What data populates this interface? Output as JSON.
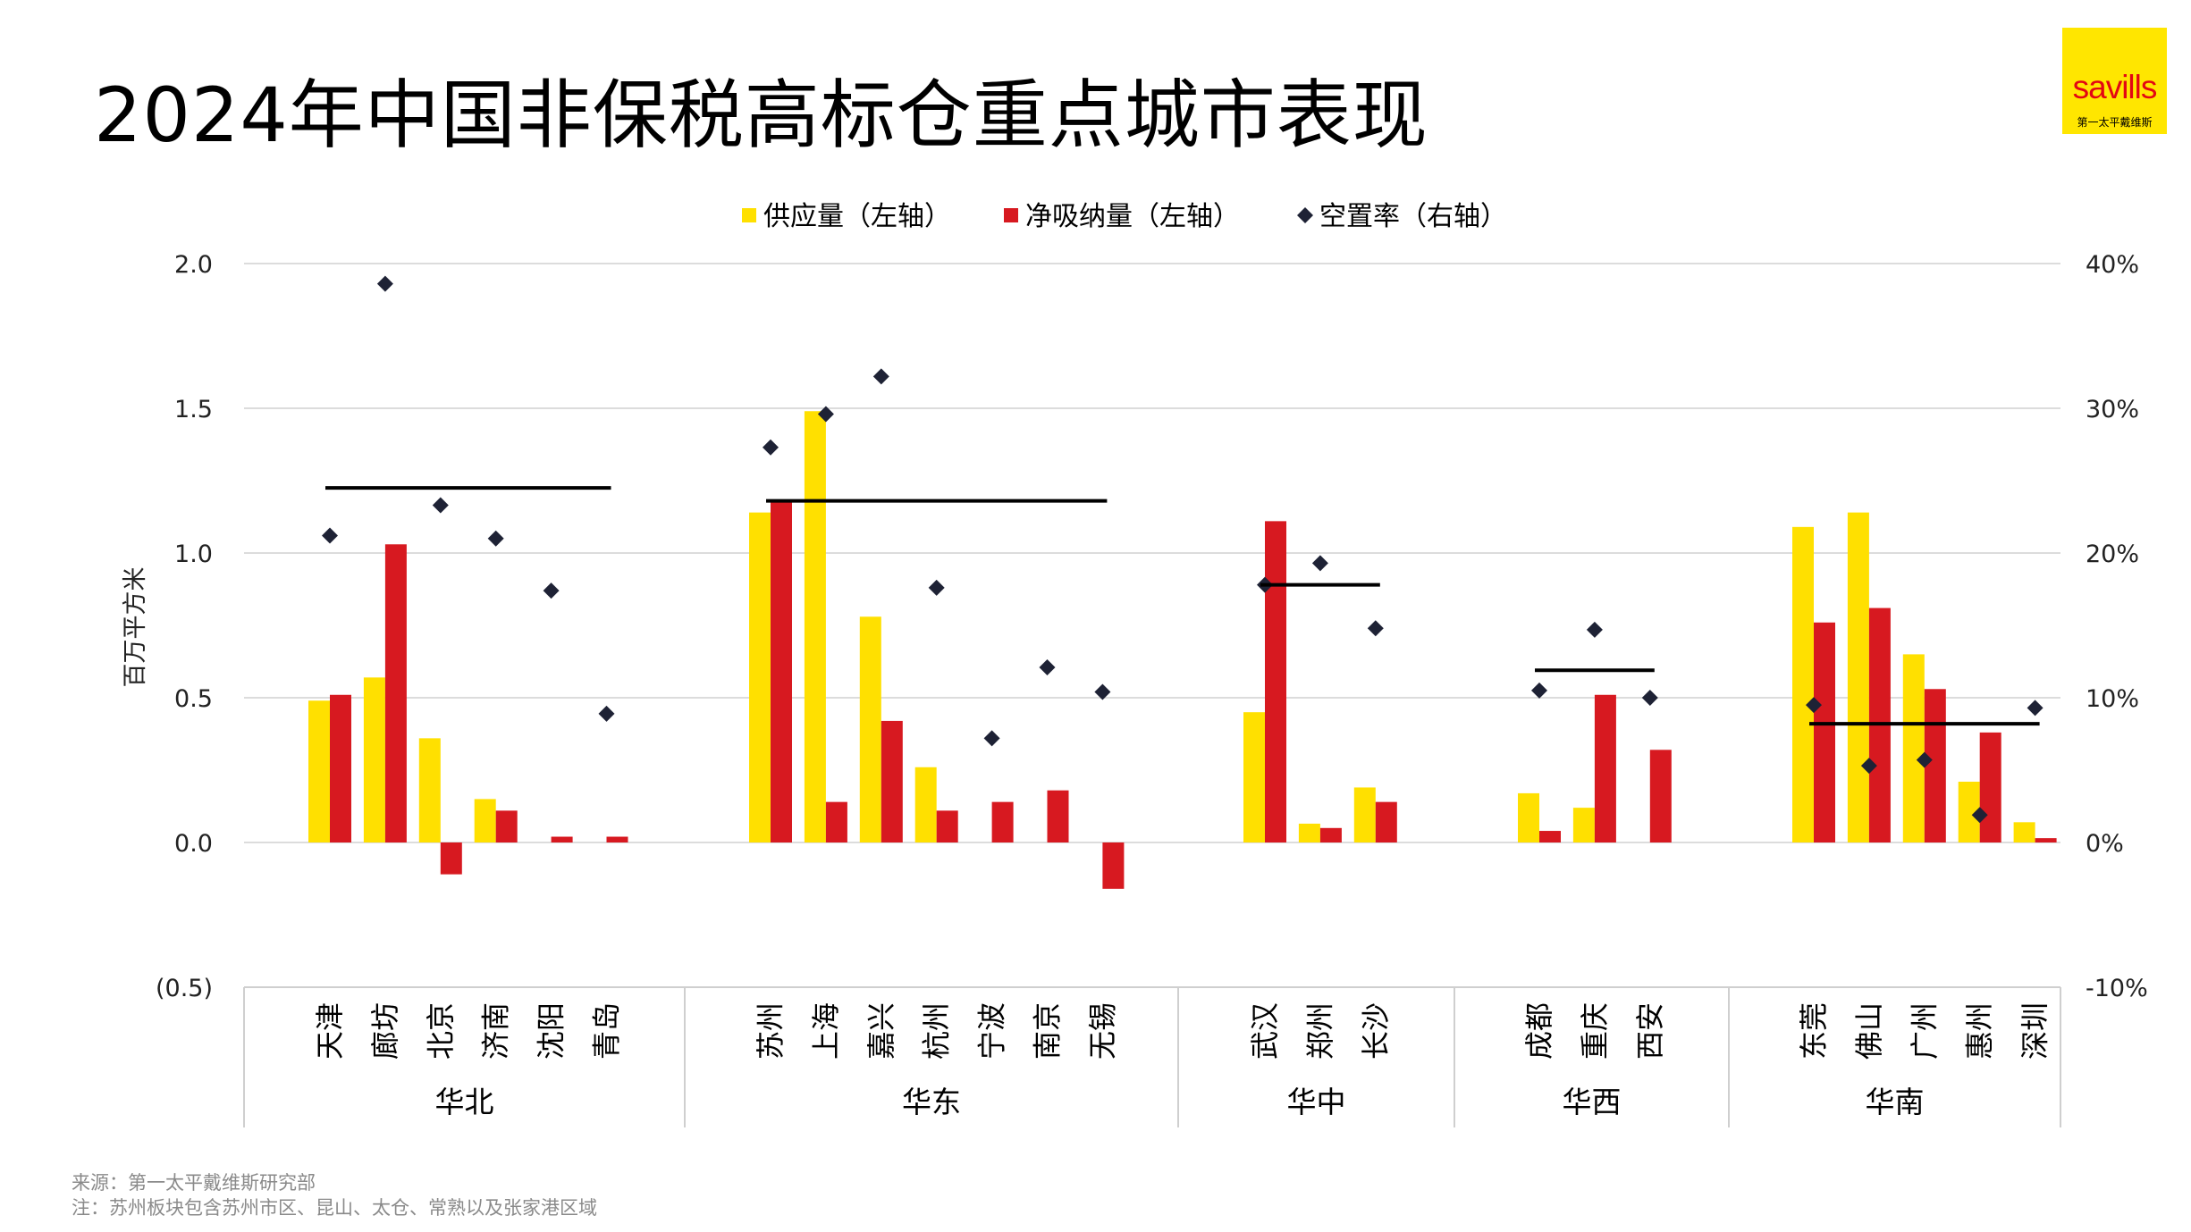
{
  "title": "2024年中国非保税高标仓重点城市表现",
  "logo": {
    "brand": "savills",
    "subtitle": "第一太平戴维斯"
  },
  "footnotes": {
    "source": "来源：第一太平戴维斯研究部",
    "note": "注：苏州板块包含苏州市区、昆山、太仓、常熟以及张家港区域"
  },
  "colors": {
    "supply": "#FFE000",
    "absorption": "#D71920",
    "vacancy": "#1E2235",
    "average": "#000000"
  },
  "chart_data": {
    "type": "bar",
    "legend": {
      "position": "top",
      "items": [
        "供应量（左轴）",
        "净吸纳量（左轴）",
        "空置率（右轴）"
      ]
    },
    "ylabel": "百万平方米",
    "ylim": [
      -0.5,
      2.0
    ],
    "y_ticks": [
      "(0.5)",
      "0.0",
      "0.5",
      "1.0",
      "1.5",
      "2.0"
    ],
    "y2lim": [
      -10,
      40
    ],
    "y2_ticks": [
      "-10%",
      "0%",
      "10%",
      "20%",
      "30%",
      "40%"
    ],
    "grid": true,
    "groups": [
      {
        "region": "华北",
        "average_vacancy": 24.5,
        "cities": [
          {
            "name": "天津",
            "supply": 0.49,
            "absorption": 0.51,
            "vacancy": 21.2
          },
          {
            "name": "廊坊",
            "supply": 0.57,
            "absorption": 1.03,
            "vacancy": 38.6
          },
          {
            "name": "北京",
            "supply": 0.36,
            "absorption": -0.11,
            "vacancy": 23.3
          },
          {
            "name": "济南",
            "supply": 0.15,
            "absorption": 0.11,
            "vacancy": 21.0
          },
          {
            "name": "沈阳",
            "supply": 0,
            "absorption": 0.02,
            "vacancy": 17.4
          },
          {
            "name": "青岛",
            "supply": 0,
            "absorption": 0.02,
            "vacancy": 8.9
          }
        ]
      },
      {
        "region": "华东",
        "average_vacancy": 23.6,
        "cities": [
          {
            "name": "苏州",
            "supply": 1.14,
            "absorption": 1.18,
            "vacancy": 27.3
          },
          {
            "name": "上海",
            "supply": 1.49,
            "absorption": 0.14,
            "vacancy": 29.6
          },
          {
            "name": "嘉兴",
            "supply": 0.78,
            "absorption": 0.42,
            "vacancy": 32.2
          },
          {
            "name": "杭州",
            "supply": 0.26,
            "absorption": 0.11,
            "vacancy": 17.6
          },
          {
            "name": "宁波",
            "supply": 0,
            "absorption": 0.14,
            "vacancy": 7.2
          },
          {
            "name": "南京",
            "supply": 0,
            "absorption": 0.18,
            "vacancy": 12.1
          },
          {
            "name": "无锡",
            "supply": 0,
            "absorption": -0.16,
            "vacancy": 10.4
          }
        ]
      },
      {
        "region": "华中",
        "average_vacancy": 17.8,
        "cities": [
          {
            "name": "武汉",
            "supply": 0.45,
            "absorption": 1.11,
            "vacancy": 17.8
          },
          {
            "name": "郑州",
            "supply": 0.065,
            "absorption": 0.05,
            "vacancy": 19.3
          },
          {
            "name": "长沙",
            "supply": 0.19,
            "absorption": 0.14,
            "vacancy": 14.8
          }
        ]
      },
      {
        "region": "华西",
        "average_vacancy": 11.9,
        "cities": [
          {
            "name": "成都",
            "supply": 0.17,
            "absorption": 0.04,
            "vacancy": 10.5
          },
          {
            "name": "重庆",
            "supply": 0.12,
            "absorption": 0.51,
            "vacancy": 14.7
          },
          {
            "name": "西安",
            "supply": 0,
            "absorption": 0.32,
            "vacancy": 10.0
          }
        ]
      },
      {
        "region": "华南",
        "average_vacancy": 8.2,
        "cities": [
          {
            "name": "东莞",
            "supply": 1.09,
            "absorption": 0.76,
            "vacancy": 9.5
          },
          {
            "name": "佛山",
            "supply": 1.14,
            "absorption": 0.81,
            "vacancy": 5.3
          },
          {
            "name": "广州",
            "supply": 0.65,
            "absorption": 0.53,
            "vacancy": 5.7
          },
          {
            "name": "惠州",
            "supply": 0.21,
            "absorption": 0.38,
            "vacancy": 1.9
          },
          {
            "name": "深圳",
            "supply": 0.07,
            "absorption": 0.015,
            "vacancy": 9.3
          }
        ]
      }
    ]
  }
}
